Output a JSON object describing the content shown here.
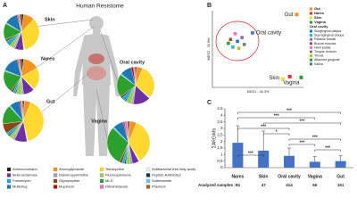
{
  "panel_a": {
    "label": "A",
    "title": "Human Resistome",
    "classes": [
      {
        "name": "Aminocoumarin",
        "color": "#1a1a1a"
      },
      {
        "name": "Aminoglycoside",
        "color": "#f7931e"
      },
      {
        "name": "Tetracycline",
        "color": "#ffd92f"
      },
      {
        "name": "Antibacterial free fatty acids",
        "color": "#f2f2f2"
      },
      {
        "name": "Beta-lactamase",
        "color": "#7030a0"
      },
      {
        "name": "Diaminopyrimidine",
        "color": "#a5a5a5"
      },
      {
        "name": "Fluoroquinolone",
        "color": "#92d050"
      },
      {
        "name": "Peptide Antibiotics",
        "color": "#003366"
      },
      {
        "name": "Fosfomycin",
        "color": "#00b0f0"
      },
      {
        "name": "Glycopeptide",
        "color": "#8b4513"
      },
      {
        "name": "MLS",
        "color": "#2ca02c"
      },
      {
        "name": "Sulfonamide",
        "color": "#66ccff"
      },
      {
        "name": "Multidrug",
        "color": "#1f77b4"
      },
      {
        "name": "Mupirocin",
        "color": "#c00000"
      },
      {
        "name": "Nitroimidazole",
        "color": "#ff66cc"
      },
      {
        "name": "Phenicol",
        "color": "#996633"
      }
    ],
    "pies": [
      {
        "label": "Skin",
        "values": [
          2,
          10,
          35,
          1,
          8,
          2,
          4,
          1,
          3,
          2,
          15,
          1,
          12,
          1,
          1,
          2
        ]
      },
      {
        "label": "Nares",
        "values": [
          2,
          15,
          20,
          1,
          10,
          2,
          5,
          1,
          2,
          2,
          20,
          1,
          15,
          1,
          1,
          2
        ]
      },
      {
        "label": "Gut",
        "values": [
          1,
          5,
          40,
          1,
          10,
          2,
          3,
          1,
          2,
          8,
          15,
          1,
          8,
          1,
          1,
          1
        ]
      },
      {
        "label": "Oral cavity",
        "values": [
          1,
          5,
          30,
          1,
          15,
          2,
          5,
          1,
          3,
          2,
          20,
          1,
          10,
          2,
          1,
          1
        ]
      },
      {
        "label": "Vagina",
        "values": [
          1,
          5,
          35,
          1,
          5,
          2,
          3,
          1,
          2,
          2,
          30,
          1,
          8,
          1,
          2,
          1
        ]
      }
    ]
  },
  "panel_b": {
    "label": "B",
    "x_label": "MDS1 - 44.3%",
    "y_label": "MDS2 - 33.9%",
    "xlim": [
      -1,
      1
    ],
    "ylim": [
      -1,
      1
    ],
    "point_labels": [
      "Gut",
      "Oral cavity",
      "Skin",
      "Vagina"
    ],
    "groups": [
      {
        "name": "Gut",
        "color": "#f7931e",
        "x": 0.85,
        "y": 0.9
      },
      {
        "name": "Nares",
        "color": "#e03030",
        "x": 0.7,
        "y": -0.72
      },
      {
        "name": "Skin",
        "color": "#ffd92f",
        "x": 0.55,
        "y": -0.78
      },
      {
        "name": "Vagina",
        "color": "#2ca02c",
        "x": 0.95,
        "y": -0.74
      }
    ],
    "oral_header": "Oral cavity",
    "sites": [
      {
        "name": "Subgingival plaque",
        "color": "#1f77b4",
        "x": -0.45,
        "y": 0.2
      },
      {
        "name": "Supragingival plaque",
        "color": "#17becf",
        "x": -0.55,
        "y": 0.05
      },
      {
        "name": "Palatine tonsils",
        "color": "#9467bd",
        "x": -0.35,
        "y": 0.3
      },
      {
        "name": "Buccal mucosa",
        "color": "#8c564b",
        "x": -0.6,
        "y": 0.25
      },
      {
        "name": "Hard palate",
        "color": "#e377c2",
        "x": -0.5,
        "y": 0.4
      },
      {
        "name": "Tongue dorsum",
        "color": "#7f7f7f",
        "x": -0.3,
        "y": 0.12
      },
      {
        "name": "Throat",
        "color": "#bcbd22",
        "x": -0.42,
        "y": 0.02
      },
      {
        "name": "Attached gingivae",
        "color": "#2ca02c",
        "x": -0.65,
        "y": 0.15
      },
      {
        "name": "Saliva",
        "color": "#4472c4",
        "x": -0.12,
        "y": 0.42
      }
    ]
  },
  "panel_c": {
    "label": "C",
    "y_label": "ΣARG/Mb",
    "ylim": [
      0,
      4.5
    ],
    "yticks": [
      0,
      {
        "value": 0.5,
        "label": "0,5"
      },
      1,
      {
        "value": 1.5,
        "label": "1,5"
      },
      2,
      {
        "value": 2.5,
        "label": "2,5"
      },
      3,
      {
        "value": 3.5,
        "label": "3,5"
      },
      4,
      {
        "value": 4.5,
        "label": "4,5"
      }
    ],
    "categories": [
      "Nares",
      "Skin",
      "Oral cavity",
      "Vagina",
      "Gut"
    ],
    "values": [
      1.9,
      1.3,
      0.9,
      0.45,
      0.5
    ],
    "errors": [
      1.3,
      1.5,
      0.6,
      0.4,
      0.4
    ],
    "color": "#4472c4",
    "sample_label": "Analyzed samples :",
    "samples": [
      94,
      47,
      414,
      65,
      151
    ],
    "significance": [
      "***",
      "***",
      "***",
      "***",
      "*",
      "***",
      "***",
      "***",
      "***"
    ]
  }
}
